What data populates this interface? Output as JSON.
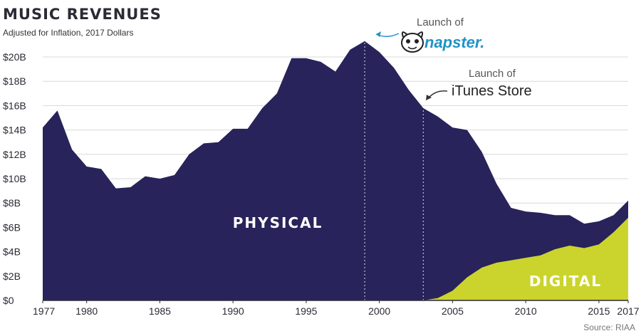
{
  "chart_data": {
    "type": "area",
    "title": "MUSIC REVENUES",
    "subtitle": "Adjusted for Inflation, 2017 Dollars",
    "source": "Source: RIAA",
    "xlim": [
      1977,
      2017
    ],
    "ylim": [
      0,
      22
    ],
    "y_ticks": [
      0,
      2,
      4,
      6,
      8,
      10,
      12,
      14,
      16,
      18,
      20
    ],
    "y_tick_labels": [
      "$0",
      "$2B",
      "$4B",
      "$6B",
      "$8B",
      "$10B",
      "$12B",
      "$14B",
      "$16B",
      "$18B",
      "$20B"
    ],
    "x_ticks": [
      1977,
      1980,
      1985,
      1990,
      1995,
      2000,
      2005,
      2010,
      2015,
      2017
    ],
    "x_tick_labels": [
      "1977",
      "1980",
      "1985",
      "1990",
      "1995",
      "2000",
      "2005",
      "2010",
      "2015",
      "2017"
    ],
    "x": [
      1977,
      1978,
      1979,
      1980,
      1981,
      1982,
      1983,
      1984,
      1985,
      1986,
      1987,
      1988,
      1989,
      1990,
      1991,
      1992,
      1993,
      1994,
      1995,
      1996,
      1997,
      1998,
      1999,
      2000,
      2001,
      2002,
      2003,
      2004,
      2005,
      2006,
      2007,
      2008,
      2009,
      2010,
      2011,
      2012,
      2013,
      2014,
      2015,
      2016,
      2017
    ],
    "series": [
      {
        "name": "PHYSICAL",
        "label": "PHYSICAL",
        "color": "#28235a",
        "values": [
          14.2,
          15.6,
          12.4,
          11.0,
          10.8,
          9.2,
          9.3,
          10.2,
          10.0,
          10.3,
          12.0,
          12.9,
          13.0,
          14.1,
          14.1,
          15.8,
          17.0,
          19.9,
          19.9,
          19.6,
          18.8,
          20.6,
          21.3,
          20.4,
          19.1,
          17.3,
          15.8,
          14.9,
          13.4,
          12.1,
          9.5,
          6.5,
          4.3,
          3.8,
          3.5,
          2.8,
          2.5,
          2.0,
          1.9,
          1.4,
          1.4
        ]
      },
      {
        "name": "DIGITAL",
        "label": "DIGITAL",
        "color": "#cbd42c",
        "values": [
          0,
          0,
          0,
          0,
          0,
          0,
          0,
          0,
          0,
          0,
          0,
          0,
          0,
          0,
          0,
          0,
          0,
          0,
          0,
          0,
          0,
          0,
          0,
          0,
          0,
          0,
          0,
          0.2,
          0.8,
          1.9,
          2.7,
          3.1,
          3.3,
          3.5,
          3.7,
          4.2,
          4.5,
          4.3,
          4.6,
          5.6,
          6.8
        ]
      }
    ],
    "annotations": [
      {
        "year": 1999,
        "text_top": "Launch of",
        "text_main": "napster."
      },
      {
        "year": 2003,
        "text_top": "Launch of",
        "text_main": "iTunes Store"
      }
    ],
    "grid": true
  }
}
